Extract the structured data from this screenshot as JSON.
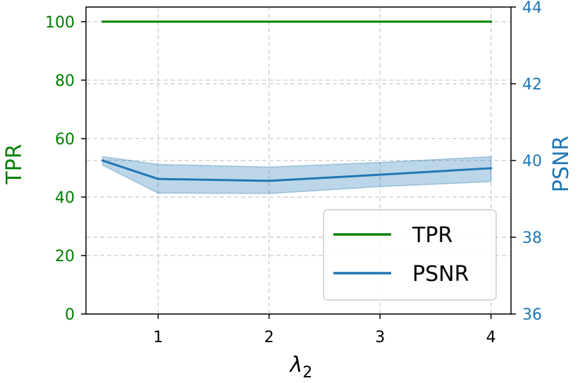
{
  "chart_data": {
    "type": "line",
    "xlabel": "λ",
    "xlabel_subscript": "2",
    "xlim": [
      0.35,
      4.18
    ],
    "xticks": [
      1,
      2,
      3,
      4
    ],
    "grid": true,
    "legend_placement": "lower-right",
    "left_axis": {
      "label": "TPR",
      "color": "#008000",
      "ylim": [
        0,
        105
      ],
      "ticks": [
        0,
        20,
        40,
        60,
        80,
        100
      ]
    },
    "right_axis": {
      "label": "PSNR",
      "color": "#1f77b4",
      "ylim": [
        36,
        44
      ],
      "ticks": [
        36,
        38,
        40,
        42,
        44
      ]
    },
    "series": [
      {
        "name": "TPR",
        "axis": "left",
        "color": "#008000",
        "x": [
          0.5,
          1,
          2,
          3,
          4
        ],
        "y": [
          100,
          100,
          100,
          100,
          100
        ]
      },
      {
        "name": "PSNR",
        "axis": "right",
        "color": "#1f77b4",
        "x": [
          0.5,
          1,
          2,
          3,
          4
        ],
        "y": [
          40.0,
          39.52,
          39.47,
          39.63,
          39.8
        ],
        "band_upper": [
          40.1,
          39.9,
          39.83,
          39.95,
          40.1
        ],
        "band_lower": [
          39.88,
          39.15,
          39.14,
          39.32,
          39.45
        ]
      }
    ]
  }
}
